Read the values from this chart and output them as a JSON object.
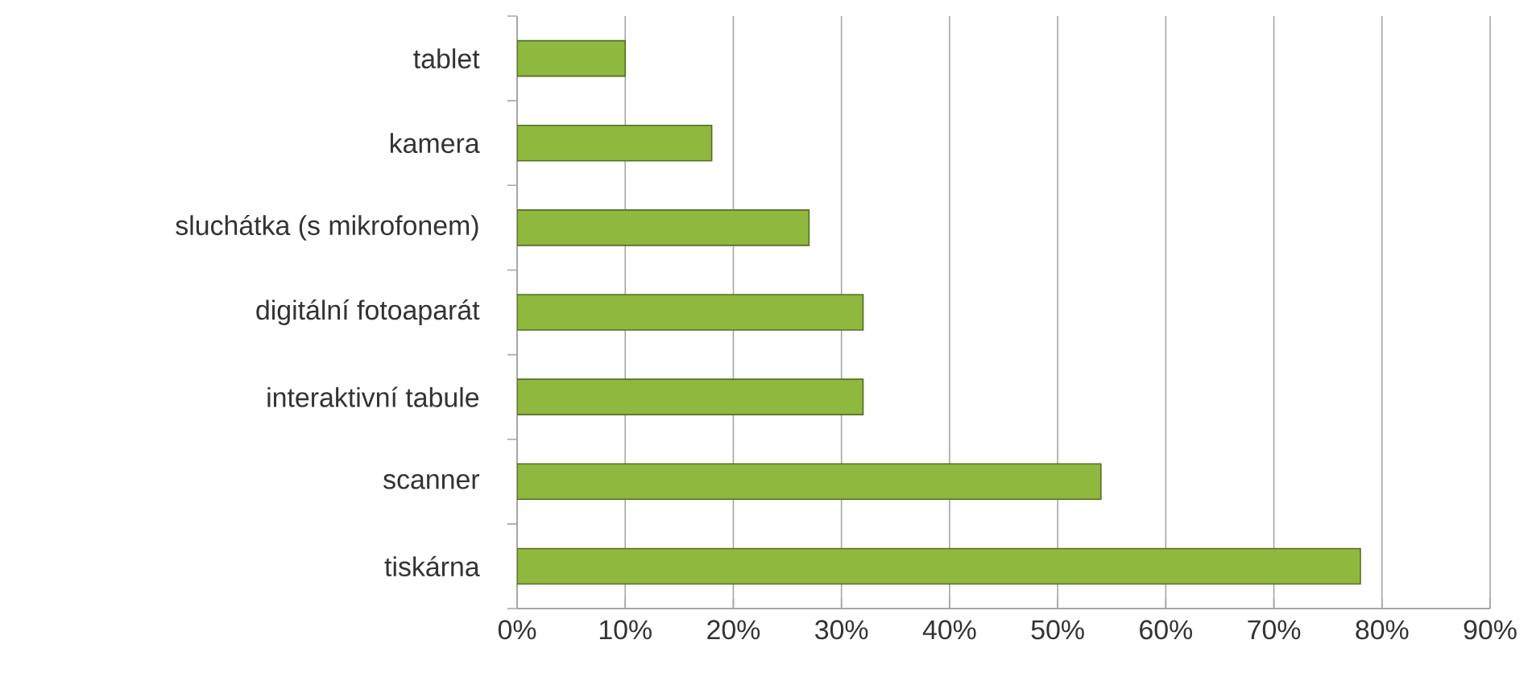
{
  "chart_data": {
    "type": "bar",
    "orientation": "horizontal",
    "categories": [
      "tablet",
      "kamera",
      "sluchátka (s mikrofonem)",
      "digitální fotoaparát",
      "interaktivní tabule",
      "scanner",
      "tiskárna"
    ],
    "values": [
      10,
      18,
      27,
      32,
      32,
      54,
      78
    ],
    "color": "#8fb83e",
    "xlim": [
      0,
      90
    ],
    "xticks": [
      {
        "value": 0,
        "label": "0%"
      },
      {
        "value": 10,
        "label": "10%"
      },
      {
        "value": 20,
        "label": "20%"
      },
      {
        "value": 30,
        "label": "30%"
      },
      {
        "value": 40,
        "label": "40%"
      },
      {
        "value": 50,
        "label": "50%"
      },
      {
        "value": 60,
        "label": "60%"
      },
      {
        "value": 70,
        "label": "70%"
      },
      {
        "value": 80,
        "label": "80%"
      },
      {
        "value": 90,
        "label": "90%"
      }
    ],
    "grid": "x"
  }
}
